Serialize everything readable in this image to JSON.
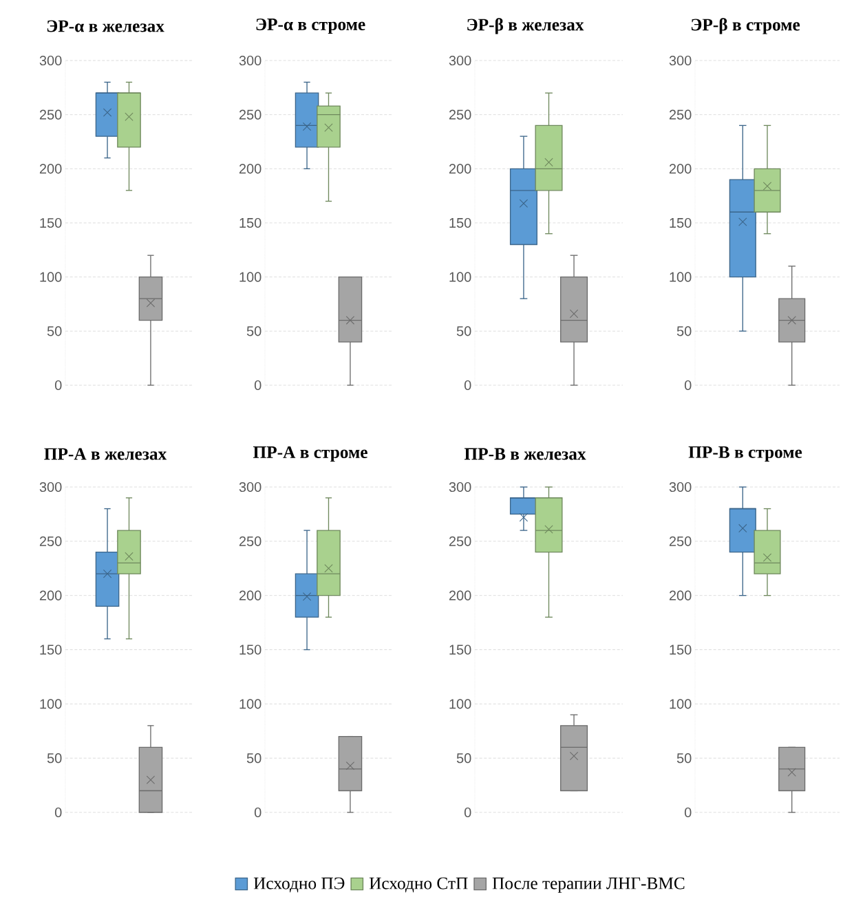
{
  "chart_data": [
    {
      "type": "box",
      "title": "ЭР-α в железах",
      "categories": [
        null
      ],
      "ylim": [
        0,
        300
      ],
      "yticks": [
        0,
        50,
        100,
        150,
        200,
        250,
        300
      ],
      "grid": "y",
      "legend": "bottom",
      "series": [
        {
          "name": "Исходно ПЭ",
          "color": "#5b9bd5",
          "boxes": [
            {
              "low": 210,
              "q1": 230,
              "median": 270,
              "q3": 270,
              "high": 280,
              "mean": 252
            }
          ]
        },
        {
          "name": "Исходно СтП",
          "color": "#a9d18e",
          "boxes": [
            {
              "low": 180,
              "q1": 220,
              "median": 270,
              "q3": 270,
              "high": 280,
              "mean": 248
            }
          ]
        },
        {
          "name": "После терапии ЛНГ-ВМС",
          "color": "#a5a5a5",
          "boxes": [
            {
              "low": 0,
              "q1": 60,
              "median": 80,
              "q3": 100,
              "high": 120,
              "mean": 76
            }
          ]
        }
      ]
    },
    {
      "type": "box",
      "title": "ЭР-α в строме",
      "categories": [
        null
      ],
      "ylim": [
        0,
        300
      ],
      "yticks": [
        0,
        50,
        100,
        150,
        200,
        250,
        300
      ],
      "grid": "y",
      "series": [
        {
          "color": "#5b9bd5",
          "boxes": [
            {
              "low": 200,
              "q1": 220,
              "median": 240,
              "q3": 270,
              "high": 280,
              "mean": 239
            }
          ]
        },
        {
          "color": "#a9d18e",
          "boxes": [
            {
              "low": 170,
              "q1": 220,
              "median": 250,
              "q3": 258,
              "high": 270,
              "mean": 238
            }
          ]
        },
        {
          "color": "#a5a5a5",
          "boxes": [
            {
              "low": 0,
              "q1": 40,
              "median": 60,
              "q3": 100,
              "high": 100,
              "mean": 60
            }
          ]
        }
      ]
    },
    {
      "type": "box",
      "title": "ЭР-β в железах",
      "categories": [
        null
      ],
      "ylim": [
        0,
        300
      ],
      "yticks": [
        0,
        50,
        100,
        150,
        200,
        250,
        300
      ],
      "grid": "y",
      "series": [
        {
          "color": "#5b9bd5",
          "boxes": [
            {
              "low": 80,
              "q1": 130,
              "median": 180,
              "q3": 200,
              "high": 230,
              "mean": 168
            }
          ]
        },
        {
          "color": "#a9d18e",
          "boxes": [
            {
              "low": 140,
              "q1": 180,
              "median": 200,
              "q3": 240,
              "high": 270,
              "mean": 206
            }
          ]
        },
        {
          "color": "#a5a5a5",
          "boxes": [
            {
              "low": 0,
              "q1": 40,
              "median": 60,
              "q3": 100,
              "high": 120,
              "mean": 66
            }
          ]
        }
      ]
    },
    {
      "type": "box",
      "title": "ЭР-β в строме",
      "categories": [
        null
      ],
      "ylim": [
        0,
        300
      ],
      "yticks": [
        0,
        50,
        100,
        150,
        200,
        250,
        300
      ],
      "grid": "y",
      "series": [
        {
          "color": "#5b9bd5",
          "boxes": [
            {
              "low": 50,
              "q1": 100,
              "median": 160,
              "q3": 190,
              "high": 240,
              "mean": 151
            }
          ]
        },
        {
          "color": "#a9d18e",
          "boxes": [
            {
              "low": 140,
              "q1": 160,
              "median": 180,
              "q3": 200,
              "high": 240,
              "mean": 184
            }
          ]
        },
        {
          "color": "#a5a5a5",
          "boxes": [
            {
              "low": 0,
              "q1": 40,
              "median": 60,
              "q3": 80,
              "high": 110,
              "mean": 60
            }
          ]
        }
      ]
    },
    {
      "type": "box",
      "title": "ПР-А в железах",
      "categories": [
        null
      ],
      "ylim": [
        0,
        300
      ],
      "yticks": [
        0,
        50,
        100,
        150,
        200,
        250,
        300
      ],
      "grid": "y",
      "series": [
        {
          "color": "#5b9bd5",
          "boxes": [
            {
              "low": 160,
              "q1": 190,
              "median": 220,
              "q3": 240,
              "high": 280,
              "mean": 220
            }
          ]
        },
        {
          "color": "#a9d18e",
          "boxes": [
            {
              "low": 160,
              "q1": 220,
              "median": 230,
              "q3": 260,
              "high": 290,
              "mean": 236
            }
          ]
        },
        {
          "color": "#a5a5a5",
          "boxes": [
            {
              "low": 0,
              "q1": 0,
              "median": 20,
              "q3": 60,
              "high": 80,
              "mean": 30
            }
          ]
        }
      ]
    },
    {
      "type": "box",
      "title": "ПР-А в строме",
      "categories": [
        null
      ],
      "ylim": [
        0,
        300
      ],
      "yticks": [
        0,
        50,
        100,
        150,
        200,
        250,
        300
      ],
      "grid": "y",
      "series": [
        {
          "color": "#5b9bd5",
          "boxes": [
            {
              "low": 150,
              "q1": 180,
              "median": 200,
              "q3": 220,
              "high": 260,
              "mean": 199
            }
          ]
        },
        {
          "color": "#a9d18e",
          "boxes": [
            {
              "low": 180,
              "q1": 200,
              "median": 220,
              "q3": 260,
              "high": 290,
              "mean": 225
            }
          ]
        },
        {
          "color": "#a5a5a5",
          "boxes": [
            {
              "low": 0,
              "q1": 20,
              "median": 40,
              "q3": 70,
              "high": 70,
              "mean": 43
            }
          ]
        }
      ]
    },
    {
      "type": "box",
      "title": "ПР-В в железах",
      "categories": [
        null
      ],
      "ylim": [
        0,
        300
      ],
      "yticks": [
        0,
        50,
        100,
        150,
        200,
        250,
        300
      ],
      "grid": "y",
      "series": [
        {
          "color": "#5b9bd5",
          "boxes": [
            {
              "low": 260,
              "q1": 275,
              "median": 290,
              "q3": 290,
              "high": 300,
              "mean": 272
            }
          ]
        },
        {
          "color": "#a9d18e",
          "boxes": [
            {
              "low": 180,
              "q1": 240,
              "median": 260,
              "q3": 290,
              "high": 300,
              "mean": 261
            }
          ]
        },
        {
          "color": "#a5a5a5",
          "boxes": [
            {
              "low": 20,
              "q1": 20,
              "median": 60,
              "q3": 80,
              "high": 90,
              "mean": 52
            }
          ]
        }
      ]
    },
    {
      "type": "box",
      "title": "ПР-В в строме",
      "categories": [
        null
      ],
      "ylim": [
        0,
        300
      ],
      "yticks": [
        0,
        50,
        100,
        150,
        200,
        250,
        300
      ],
      "grid": "y",
      "series": [
        {
          "color": "#5b9bd5",
          "boxes": [
            {
              "low": 200,
              "q1": 240,
              "median": 280,
              "q3": 280,
              "high": 300,
              "mean": 262
            }
          ]
        },
        {
          "color": "#a9d18e",
          "boxes": [
            {
              "low": 200,
              "q1": 220,
              "median": 230,
              "q3": 260,
              "high": 280,
              "mean": 235
            }
          ]
        },
        {
          "color": "#a5a5a5",
          "boxes": [
            {
              "low": 0,
              "q1": 20,
              "median": 40,
              "q3": 60,
              "high": 60,
              "mean": 37
            }
          ]
        }
      ]
    }
  ]
}
